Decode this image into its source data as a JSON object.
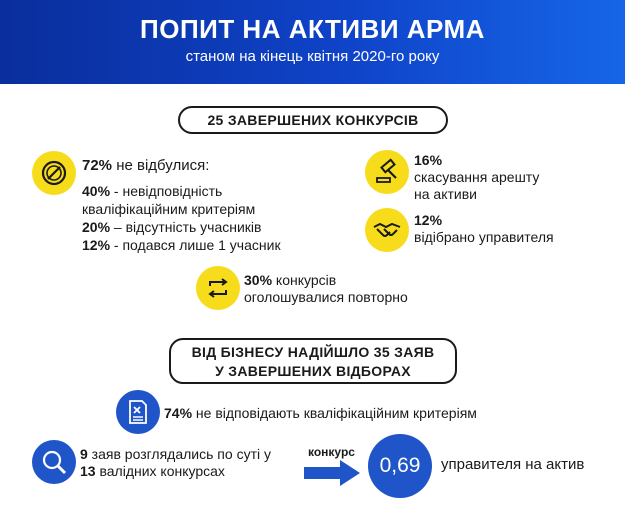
{
  "header": {
    "title": "ПОПИТ НА АКТИВИ АРМА",
    "subtitle": "станом на кінець квітня 2020-го року"
  },
  "section1": {
    "pill": "25 ЗАВЕРШЕНИХ КОНКУРСІВ",
    "not_held": {
      "pct": "72%",
      "label": "не відбулися:",
      "items": [
        {
          "pct": "40%",
          "text": " - невідповідність"
        },
        {
          "pct": "",
          "text": "кваліфікаційним критеріям"
        },
        {
          "pct": "20%",
          "text": " – відсутність учасників"
        },
        {
          "pct": "12%",
          "text": " - подався лише 1 учасник"
        }
      ]
    },
    "arrest": {
      "pct": "16%",
      "line1": "скасування арешту",
      "line2": "на активи"
    },
    "manager": {
      "pct": "12%",
      "line1": "відібрано управителя"
    },
    "repeated": {
      "pct": "30%",
      "line1": " конкурсів",
      "line2": "оголошувалися повторно"
    }
  },
  "section2": {
    "pill_line1": "ВІД БІЗНЕСУ НАДІЙШЛО 35 ЗАЯВ",
    "pill_line2": "У ЗАВЕРШЕНИХ ВІДБОРАХ",
    "noncompliant": {
      "pct": "74%",
      "text": " не відповідають кваліфікаційним критеріям"
    },
    "considered": {
      "n1": "9",
      "t1": " заяв розглядались по суті у",
      "n2": "13",
      "t2": " валідних конкурсах"
    },
    "ratio": {
      "arrow_label": "конкурс",
      "value": "0,69",
      "text": "управителя на актив"
    }
  },
  "colors": {
    "header_blue": "#0f43c8",
    "icon_yellow": "#f7dc1c",
    "icon_blue": "#1f55c8"
  },
  "icons": [
    "prohibited-icon",
    "gavel-icon",
    "handshake-icon",
    "repeat-arrows-icon",
    "document-x-icon",
    "magnifier-icon",
    "arrow-right-icon"
  ]
}
